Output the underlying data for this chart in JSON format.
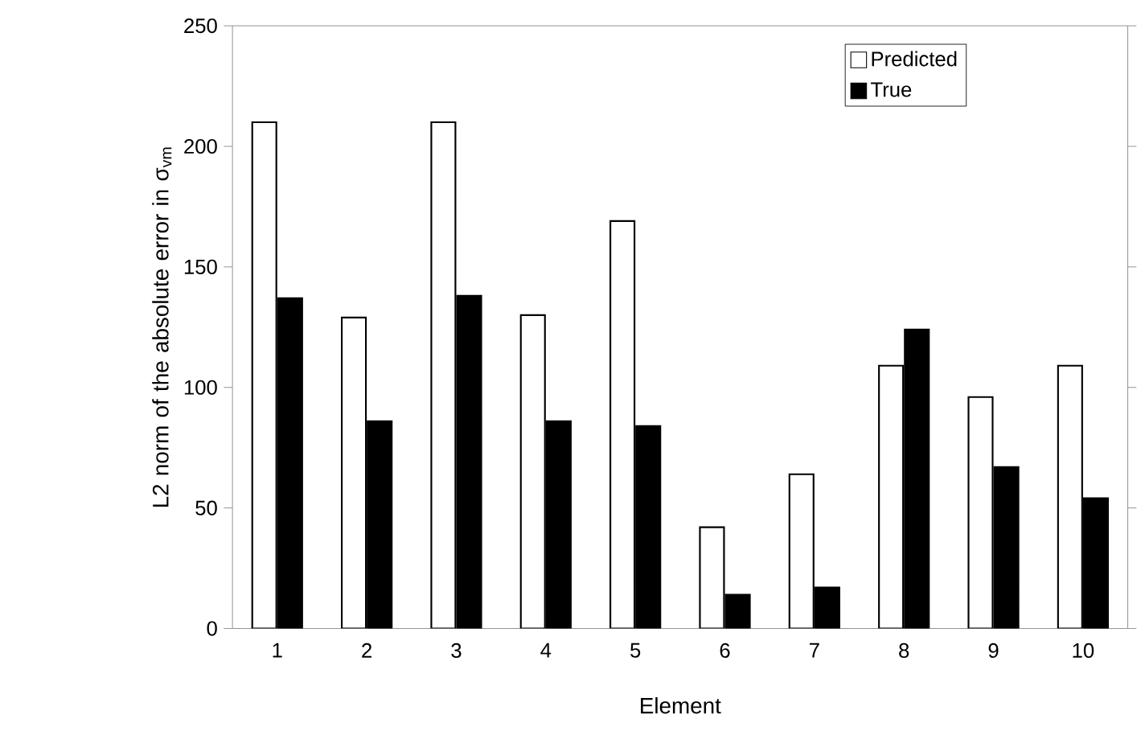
{
  "chart_data": {
    "type": "bar",
    "xlabel": "Element",
    "ylabel": "L2 norm of the absolute error in σ$_{vm}$",
    "categories": [
      "1",
      "2",
      "3",
      "4",
      "5",
      "6",
      "7",
      "8",
      "9",
      "10"
    ],
    "series": [
      {
        "name": "Predicted",
        "color": "#ffffff",
        "values": [
          210,
          129,
          210,
          130,
          169,
          42,
          64,
          109,
          96,
          109
        ]
      },
      {
        "name": "True",
        "color": "#000000",
        "values": [
          137,
          86,
          138,
          86,
          84,
          14,
          17,
          124,
          67,
          54
        ]
      }
    ],
    "ylim": [
      0,
      250
    ],
    "yticks": [
      0,
      50,
      100,
      150,
      200,
      250
    ],
    "grid": false,
    "legend": "top right"
  }
}
